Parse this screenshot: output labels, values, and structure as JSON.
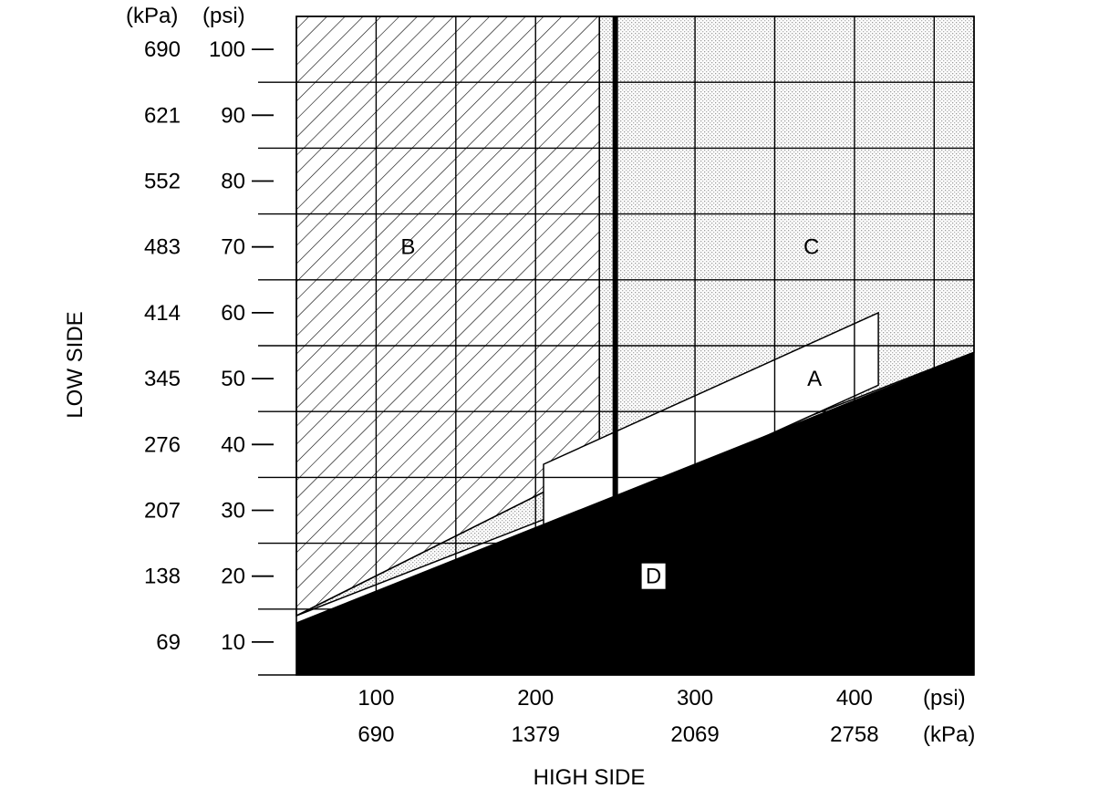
{
  "chart_data": {
    "type": "area",
    "title": "",
    "ylabel": "LOW SIDE",
    "xlabel": "HIGH SIDE",
    "y_units": [
      "(kPa)",
      "(psi)"
    ],
    "x_units": [
      "(psi)",
      "(kPa)"
    ],
    "y_ticks": [
      {
        "psi": "100",
        "kpa": "690"
      },
      {
        "psi": "90",
        "kpa": "621"
      },
      {
        "psi": "80",
        "kpa": "552"
      },
      {
        "psi": "70",
        "kpa": "483"
      },
      {
        "psi": "60",
        "kpa": "414"
      },
      {
        "psi": "50",
        "kpa": "345"
      },
      {
        "psi": "40",
        "kpa": "276"
      },
      {
        "psi": "30",
        "kpa": "207"
      },
      {
        "psi": "20",
        "kpa": "138"
      },
      {
        "psi": "10",
        "kpa": "69"
      }
    ],
    "x_ticks": [
      {
        "psi": "100",
        "kpa": "690"
      },
      {
        "psi": "200",
        "kpa": "1379"
      },
      {
        "psi": "300",
        "kpa": "2069"
      },
      {
        "psi": "400",
        "kpa": "2758"
      }
    ],
    "xlim": [
      50,
      475
    ],
    "ylim": [
      5,
      105
    ],
    "regions": [
      {
        "name": "A",
        "label": "A",
        "fill": "white",
        "label_at": [
          375,
          50
        ],
        "polygon": [
          [
            205,
            37
          ],
          [
            415,
            60
          ],
          [
            415,
            49
          ],
          [
            205,
            26
          ]
        ]
      },
      {
        "name": "B",
        "label": "B",
        "fill": "hatch",
        "label_at": [
          120,
          70
        ],
        "polygon": [
          [
            50,
            105
          ],
          [
            240,
            105
          ],
          [
            240,
            37
          ],
          [
            50,
            14
          ]
        ]
      },
      {
        "name": "C",
        "label": "C",
        "fill": "dotted",
        "label_at": [
          373,
          70
        ],
        "polygon": [
          [
            240,
            105
          ],
          [
            475,
            105
          ],
          [
            475,
            54
          ],
          [
            50,
            14
          ],
          [
            240,
            37
          ]
        ]
      },
      {
        "name": "D",
        "label": "D",
        "fill": "black",
        "label_at": [
          274,
          20
        ],
        "polygon": [
          [
            50,
            5
          ],
          [
            475,
            5
          ],
          [
            475,
            54
          ],
          [
            50,
            13
          ]
        ]
      }
    ],
    "vertical_markers": [
      250
    ],
    "grid": true
  }
}
